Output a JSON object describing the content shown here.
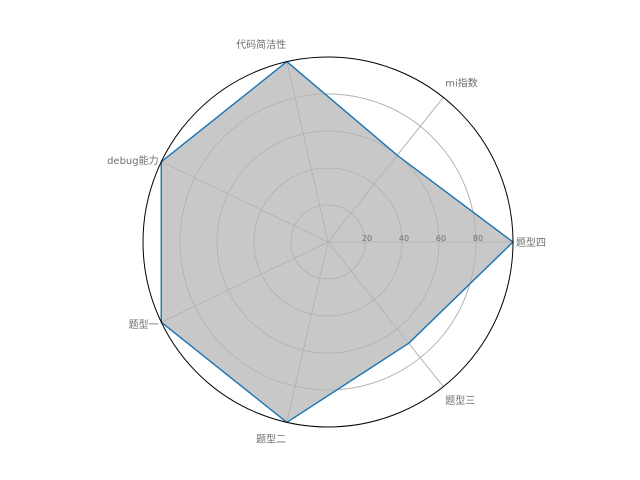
{
  "chart_data": {
    "type": "radar",
    "categories": [
      "题型四",
      "mi指数",
      "代码简洁性",
      "debug能力",
      "题型一",
      "题型二",
      "题型三"
    ],
    "values": [
      100,
      60,
      100,
      100,
      100,
      100,
      70
    ],
    "rlim": [
      0,
      100
    ],
    "r_ticks": [
      20,
      40,
      60,
      80
    ],
    "r_tick_labels": [
      "20",
      "40",
      "60",
      "80"
    ],
    "grid": true,
    "colors": {
      "line": "#1f77b4",
      "fill": "#c8c8c8",
      "grid": "#b0b0b0",
      "frame": "#000000",
      "label": "#6f6f6f"
    }
  }
}
